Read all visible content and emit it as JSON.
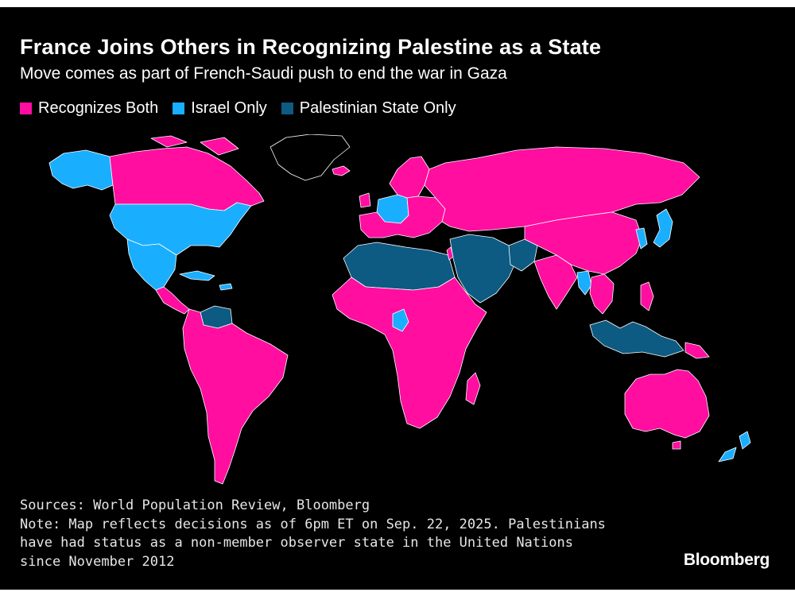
{
  "header": {
    "title": "France Joins Others in Recognizing Palestine as a State",
    "subtitle": "Move comes as part of French-Saudi push to end the war in Gaza"
  },
  "legend": {
    "items": [
      {
        "label": "Recognizes Both",
        "color": "#ff0ea0"
      },
      {
        "label": "Israel Only",
        "color": "#1aaeff"
      },
      {
        "label": "Palestinian State Only",
        "color": "#0d5a82"
      }
    ]
  },
  "map": {
    "background": "#000000",
    "border_color": "#ffffff",
    "no_data_color": "#000000",
    "regions": [
      {
        "id": "canada",
        "status": "both"
      },
      {
        "id": "alaska",
        "status": "israel"
      },
      {
        "id": "usa",
        "status": "israel"
      },
      {
        "id": "mexico",
        "status": "israel"
      },
      {
        "id": "central-america",
        "status": "both"
      },
      {
        "id": "caribbean",
        "status": "israel"
      },
      {
        "id": "venezuela",
        "status": "palestine"
      },
      {
        "id": "south-america",
        "status": "both"
      },
      {
        "id": "greenland",
        "status": "none"
      },
      {
        "id": "iceland",
        "status": "both"
      },
      {
        "id": "scandinavia",
        "status": "both"
      },
      {
        "id": "central-europe",
        "status": "israel"
      },
      {
        "id": "europe",
        "status": "both"
      },
      {
        "id": "russia",
        "status": "both"
      },
      {
        "id": "north-africa",
        "status": "palestine"
      },
      {
        "id": "sub-saharan-africa",
        "status": "both"
      },
      {
        "id": "cameroon",
        "status": "israel"
      },
      {
        "id": "madagascar",
        "status": "both"
      },
      {
        "id": "middle-east",
        "status": "palestine"
      },
      {
        "id": "israel",
        "status": "both"
      },
      {
        "id": "china-region",
        "status": "both"
      },
      {
        "id": "india",
        "status": "both"
      },
      {
        "id": "pakistan-afghanistan",
        "status": "palestine"
      },
      {
        "id": "myanmar",
        "status": "israel"
      },
      {
        "id": "korea",
        "status": "israel"
      },
      {
        "id": "japan",
        "status": "israel"
      },
      {
        "id": "southeast-asia",
        "status": "both"
      },
      {
        "id": "indonesia-malaysia",
        "status": "palestine"
      },
      {
        "id": "philippines",
        "status": "both"
      },
      {
        "id": "papua-new-guinea",
        "status": "both"
      },
      {
        "id": "australia",
        "status": "both"
      },
      {
        "id": "new-zealand",
        "status": "israel"
      }
    ]
  },
  "footer": {
    "sources": "Sources: World Population Review, Bloomberg",
    "note_line1": "Note: Map reflects decisions as of 6pm ET on Sep. 22, 2025. Palestinians",
    "note_line2": "have had status as a non-member observer state in the United Nations",
    "note_line3": "since November 2012"
  },
  "brand": "Bloomberg"
}
